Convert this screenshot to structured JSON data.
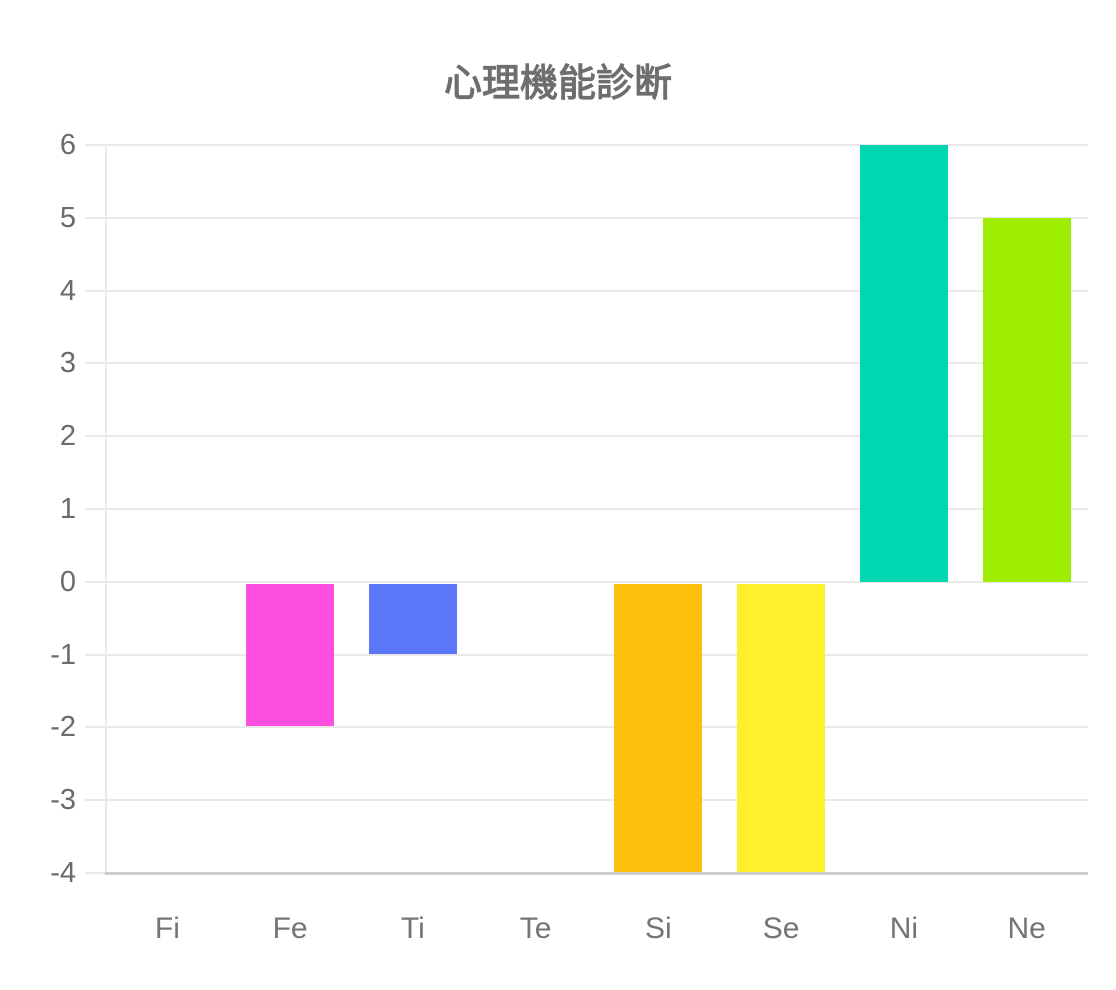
{
  "title": "心理機能診断",
  "chart_data": {
    "type": "bar",
    "title": "心理機能診断",
    "categories": [
      "Fi",
      "Fe",
      "Ti",
      "Te",
      "Si",
      "Se",
      "Ni",
      "Ne"
    ],
    "values": [
      0,
      -2,
      -1,
      0,
      -4,
      -4,
      6,
      5
    ],
    "bar_colors": [
      null,
      "#fe4fe0",
      "#5b77f8",
      null,
      "#fec00f",
      "#fef02a",
      "#01d6b3",
      "#9fed00"
    ],
    "xlabel": "",
    "ylabel": "",
    "ylim": [
      -4,
      6
    ],
    "y_ticks": [
      6,
      5,
      4,
      3,
      2,
      1,
      0,
      -1,
      -2,
      -3,
      -4
    ],
    "grid": true,
    "legend": false
  },
  "style": {
    "grid_color": "#e9e9e9",
    "tick_color": "#e9e9e9",
    "axis_color": "#cccccc",
    "label_color": "#6b6b6b",
    "title_color": "#6e6e6e"
  }
}
